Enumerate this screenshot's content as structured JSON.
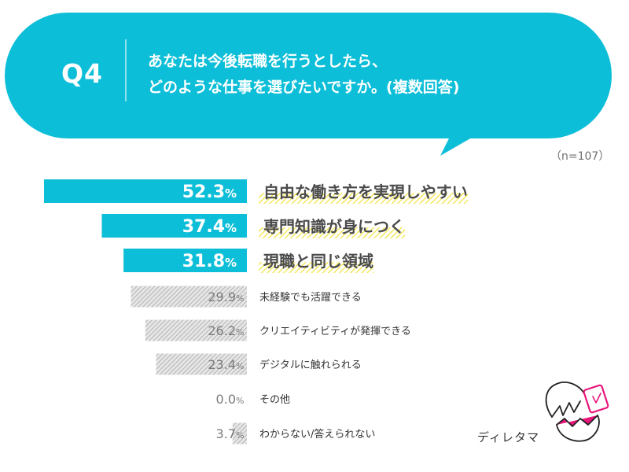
{
  "question": {
    "number": "Q4",
    "line1": "あなたは今後転職を行うとしたら、",
    "line2": "どのような仕事を選びたいですか。(複数回答)",
    "sample_size": "（n=107）"
  },
  "colors": {
    "bubble": "#0dbed8",
    "bar_highlight": "#0dbed8",
    "bar_other": "#c4c4c4",
    "underline": "#f7e63a",
    "pct_white": "#ffffff",
    "pct_gray": "#7a7a7a"
  },
  "chart_data": {
    "type": "bar",
    "orientation": "horizontal",
    "categories": [
      "自由な働き方を実現しやすい",
      "専門知識が身につく",
      "現職と同じ領域",
      "未経験でも活躍できる",
      "クリエイティビティが発揮できる",
      "デジタルに触れられる",
      "その他",
      "わからない/答えられない"
    ],
    "values": [
      52.3,
      37.4,
      31.8,
      29.9,
      26.2,
      23.4,
      0.0,
      3.7
    ],
    "value_labels": [
      "52.3",
      "37.4",
      "31.8",
      "29.9",
      "26.2",
      "23.4",
      "0.0",
      "3.7"
    ],
    "unit": "%",
    "highlighted_count": 3,
    "xlim": [
      0,
      55
    ]
  },
  "mascot": {
    "name": "ディレタマ",
    "icon": "cracked-egg-mascot-icon"
  }
}
